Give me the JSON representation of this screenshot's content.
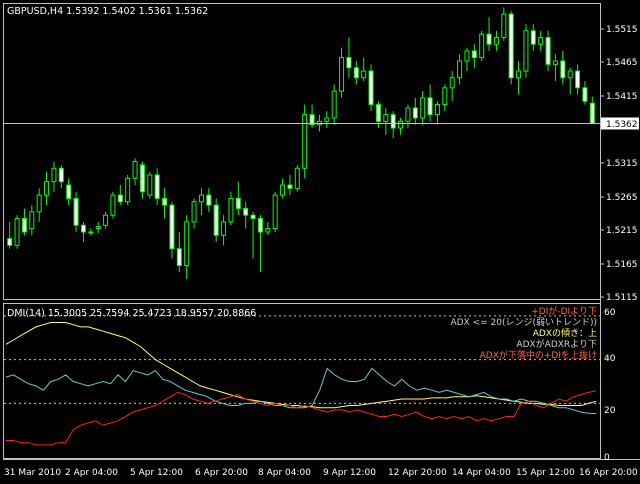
{
  "colors": {
    "background": "#000000",
    "frame": "#c0c0c0",
    "grid": "#c0c0c0",
    "candle_up_fill": "#000000",
    "candle_up_outline": "#00ff00",
    "candle_down_fill": "#ffffff",
    "candle_wick": "#00ff00",
    "price_line": "#c0c0c0",
    "adx_line": "#ffff66",
    "plus_di_line": "#66cccc",
    "minus_di_line": "#ff2020",
    "alert_plus": "#ff6644",
    "alert_adx_range": "#d0d0d0",
    "alert_adx_up": "#ffff66",
    "alert_adx_under": "#d0d0d0",
    "alert_cross": "#ff6644"
  },
  "main_chart": {
    "header": "GBPUSD,H4  1.5392 1.5402 1.5361 1.5362",
    "current_price_label": "1.5362",
    "current_price": 1.5362,
    "y_axis_labels": [
      "1.5515",
      "1.5465",
      "1.5415",
      "1.5315",
      "1.5265",
      "1.5215",
      "1.5165",
      "1.5115"
    ]
  },
  "indicator_panel": {
    "header": "DMI(14) 15.3005 25.7594 25.4723 18.9557 20.8866",
    "y_axis_labels": [
      "60",
      "40",
      "20",
      "0"
    ],
    "alerts": [
      "+DIが-DIより下",
      "ADX <= 20(レンジ(弱いトレンド))",
      "ADXの傾き：上",
      "ADXがADXRより下",
      "ADXが下落中の+DIを上抜け"
    ]
  },
  "x_axis_labels": [
    "31 Mar 2010",
    "2 Apr 04:00",
    "5 Apr 12:00",
    "6 Apr 20:00",
    "8 Apr 04:00",
    "9 Apr 12:00",
    "12 Apr 20:00",
    "14 Apr 04:00",
    "15 Apr 12:00",
    "16 Apr 20:00"
  ],
  "chart_data": [
    {
      "type": "candlestick",
      "title": "GBPUSD,H4",
      "ylim": [
        1.51,
        1.554
      ],
      "candles": [
        {
          "o": 1.519,
          "h": 1.5215,
          "l": 1.5175,
          "c": 1.518
        },
        {
          "o": 1.518,
          "h": 1.5225,
          "l": 1.5175,
          "c": 1.522
        },
        {
          "o": 1.522,
          "h": 1.5235,
          "l": 1.5195,
          "c": 1.52
        },
        {
          "o": 1.5205,
          "h": 1.524,
          "l": 1.5195,
          "c": 1.523
        },
        {
          "o": 1.523,
          "h": 1.5265,
          "l": 1.5215,
          "c": 1.5255
        },
        {
          "o": 1.5255,
          "h": 1.529,
          "l": 1.524,
          "c": 1.5275
        },
        {
          "o": 1.5275,
          "h": 1.5305,
          "l": 1.526,
          "c": 1.5295
        },
        {
          "o": 1.5295,
          "h": 1.53,
          "l": 1.5265,
          "c": 1.5275
        },
        {
          "o": 1.527,
          "h": 1.528,
          "l": 1.524,
          "c": 1.525
        },
        {
          "o": 1.525,
          "h": 1.526,
          "l": 1.52,
          "c": 1.521
        },
        {
          "o": 1.521,
          "h": 1.5215,
          "l": 1.5185,
          "c": 1.52
        },
        {
          "o": 1.52,
          "h": 1.5205,
          "l": 1.5195,
          "c": 1.52
        },
        {
          "o": 1.5205,
          "h": 1.5215,
          "l": 1.5198,
          "c": 1.5208
        },
        {
          "o": 1.521,
          "h": 1.523,
          "l": 1.5205,
          "c": 1.5225
        },
        {
          "o": 1.5225,
          "h": 1.526,
          "l": 1.522,
          "c": 1.5255
        },
        {
          "o": 1.5255,
          "h": 1.527,
          "l": 1.524,
          "c": 1.5245
        },
        {
          "o": 1.5245,
          "h": 1.5285,
          "l": 1.524,
          "c": 1.528
        },
        {
          "o": 1.528,
          "h": 1.531,
          "l": 1.527,
          "c": 1.5305
        },
        {
          "o": 1.53,
          "h": 1.5305,
          "l": 1.525,
          "c": 1.526
        },
        {
          "o": 1.5255,
          "h": 1.529,
          "l": 1.525,
          "c": 1.5285
        },
        {
          "o": 1.5285,
          "h": 1.5295,
          "l": 1.524,
          "c": 1.525
        },
        {
          "o": 1.525,
          "h": 1.5265,
          "l": 1.522,
          "c": 1.524
        },
        {
          "o": 1.524,
          "h": 1.5245,
          "l": 1.516,
          "c": 1.5175
        },
        {
          "o": 1.5175,
          "h": 1.52,
          "l": 1.514,
          "c": 1.515
        },
        {
          "o": 1.515,
          "h": 1.5225,
          "l": 1.513,
          "c": 1.5215
        },
        {
          "o": 1.5215,
          "h": 1.525,
          "l": 1.5205,
          "c": 1.5245
        },
        {
          "o": 1.5245,
          "h": 1.5265,
          "l": 1.5225,
          "c": 1.5255
        },
        {
          "o": 1.5255,
          "h": 1.5265,
          "l": 1.523,
          "c": 1.524
        },
        {
          "o": 1.524,
          "h": 1.525,
          "l": 1.5185,
          "c": 1.5195
        },
        {
          "o": 1.5195,
          "h": 1.5225,
          "l": 1.518,
          "c": 1.5215
        },
        {
          "o": 1.5215,
          "h": 1.526,
          "l": 1.521,
          "c": 1.525
        },
        {
          "o": 1.525,
          "h": 1.5275,
          "l": 1.5225,
          "c": 1.5235
        },
        {
          "o": 1.5235,
          "h": 1.5245,
          "l": 1.5205,
          "c": 1.5225
        },
        {
          "o": 1.5225,
          "h": 1.523,
          "l": 1.516,
          "c": 1.522
        },
        {
          "o": 1.522,
          "h": 1.5225,
          "l": 1.514,
          "c": 1.52
        },
        {
          "o": 1.52,
          "h": 1.5215,
          "l": 1.5195,
          "c": 1.5205
        },
        {
          "o": 1.5205,
          "h": 1.526,
          "l": 1.52,
          "c": 1.5255
        },
        {
          "o": 1.5255,
          "h": 1.528,
          "l": 1.525,
          "c": 1.527
        },
        {
          "o": 1.527,
          "h": 1.5285,
          "l": 1.5255,
          "c": 1.5265
        },
        {
          "o": 1.5265,
          "h": 1.53,
          "l": 1.526,
          "c": 1.5295
        },
        {
          "o": 1.5295,
          "h": 1.539,
          "l": 1.528,
          "c": 1.5375
        },
        {
          "o": 1.5375,
          "h": 1.539,
          "l": 1.5355,
          "c": 1.536
        },
        {
          "o": 1.536,
          "h": 1.5375,
          "l": 1.535,
          "c": 1.5365
        },
        {
          "o": 1.5365,
          "h": 1.538,
          "l": 1.5355,
          "c": 1.537
        },
        {
          "o": 1.537,
          "h": 1.542,
          "l": 1.536,
          "c": 1.541
        },
        {
          "o": 1.541,
          "h": 1.5475,
          "l": 1.54,
          "c": 1.546
        },
        {
          "o": 1.546,
          "h": 1.549,
          "l": 1.543,
          "c": 1.5445
        },
        {
          "o": 1.5445,
          "h": 1.5455,
          "l": 1.542,
          "c": 1.543
        },
        {
          "o": 1.543,
          "h": 1.546,
          "l": 1.5425,
          "c": 1.544
        },
        {
          "o": 1.544,
          "h": 1.545,
          "l": 1.538,
          "c": 1.539
        },
        {
          "o": 1.539,
          "h": 1.5395,
          "l": 1.5355,
          "c": 1.5365
        },
        {
          "o": 1.5365,
          "h": 1.5385,
          "l": 1.5345,
          "c": 1.5375
        },
        {
          "o": 1.5375,
          "h": 1.538,
          "l": 1.534,
          "c": 1.5355
        },
        {
          "o": 1.5355,
          "h": 1.537,
          "l": 1.5345,
          "c": 1.5365
        },
        {
          "o": 1.5365,
          "h": 1.539,
          "l": 1.5355,
          "c": 1.5385
        },
        {
          "o": 1.5385,
          "h": 1.54,
          "l": 1.536,
          "c": 1.537
        },
        {
          "o": 1.537,
          "h": 1.541,
          "l": 1.536,
          "c": 1.54
        },
        {
          "o": 1.54,
          "h": 1.542,
          "l": 1.5365,
          "c": 1.5375
        },
        {
          "o": 1.5375,
          "h": 1.5395,
          "l": 1.536,
          "c": 1.539
        },
        {
          "o": 1.539,
          "h": 1.542,
          "l": 1.538,
          "c": 1.5415
        },
        {
          "o": 1.5415,
          "h": 1.544,
          "l": 1.5395,
          "c": 1.543
        },
        {
          "o": 1.543,
          "h": 1.5465,
          "l": 1.542,
          "c": 1.5455
        },
        {
          "o": 1.5455,
          "h": 1.5475,
          "l": 1.544,
          "c": 1.547
        },
        {
          "o": 1.547,
          "h": 1.548,
          "l": 1.5445,
          "c": 1.546
        },
        {
          "o": 1.546,
          "h": 1.55,
          "l": 1.5455,
          "c": 1.5495
        },
        {
          "o": 1.5495,
          "h": 1.552,
          "l": 1.547,
          "c": 1.548
        },
        {
          "o": 1.548,
          "h": 1.55,
          "l": 1.547,
          "c": 1.549
        },
        {
          "o": 1.549,
          "h": 1.5535,
          "l": 1.5485,
          "c": 1.5525
        },
        {
          "o": 1.5525,
          "h": 1.553,
          "l": 1.542,
          "c": 1.543
        },
        {
          "o": 1.543,
          "h": 1.5455,
          "l": 1.5405,
          "c": 1.544
        },
        {
          "o": 1.544,
          "h": 1.551,
          "l": 1.543,
          "c": 1.55
        },
        {
          "o": 1.55,
          "h": 1.551,
          "l": 1.547,
          "c": 1.548
        },
        {
          "o": 1.548,
          "h": 1.55,
          "l": 1.547,
          "c": 1.549
        },
        {
          "o": 1.549,
          "h": 1.55,
          "l": 1.544,
          "c": 1.545
        },
        {
          "o": 1.545,
          "h": 1.5465,
          "l": 1.5425,
          "c": 1.5455
        },
        {
          "o": 1.5455,
          "h": 1.547,
          "l": 1.542,
          "c": 1.543
        },
        {
          "o": 1.543,
          "h": 1.5445,
          "l": 1.5405,
          "c": 1.544
        },
        {
          "o": 1.544,
          "h": 1.545,
          "l": 1.5405,
          "c": 1.5415
        },
        {
          "o": 1.5415,
          "h": 1.5425,
          "l": 1.539,
          "c": 1.5395
        },
        {
          "o": 1.5392,
          "h": 1.5402,
          "l": 1.5361,
          "c": 1.5362
        }
      ]
    },
    {
      "type": "line",
      "title": "DMI(14)",
      "ylim": [
        -5,
        65
      ],
      "series": [
        {
          "name": "ADX",
          "values": [
            47,
            49,
            51,
            53,
            55,
            56,
            57,
            57,
            57,
            56,
            55,
            55,
            54,
            53,
            52,
            51,
            50,
            48,
            46,
            43,
            40,
            38,
            36,
            34,
            32,
            30,
            28,
            27,
            26,
            25,
            24,
            23,
            22,
            21.5,
            21,
            20.5,
            20,
            19.5,
            19,
            19,
            18.5,
            18.5,
            18,
            18,
            18,
            18.5,
            19,
            19,
            19.5,
            20,
            20.5,
            21,
            21.5,
            22,
            22,
            22,
            22,
            22.5,
            22.5,
            22.5,
            23,
            23,
            23,
            23.5,
            23,
            22.5,
            22,
            21.5,
            21,
            20.5,
            20,
            20,
            19.5,
            19.5,
            19,
            19,
            19,
            19,
            20,
            20.9
          ]
        },
        {
          "name": "+DI",
          "values": [
            32,
            33,
            31,
            29,
            28,
            26,
            30,
            31,
            33,
            30,
            29,
            28,
            29,
            30,
            29,
            33,
            30,
            35,
            34,
            33,
            35,
            31,
            30,
            28,
            26,
            25,
            24,
            23,
            21,
            20,
            19,
            19,
            20,
            20,
            21,
            20,
            19,
            19,
            18,
            18,
            18,
            19,
            26,
            36,
            33,
            31,
            30,
            30,
            31,
            36,
            33,
            30,
            28,
            31,
            28,
            26,
            27,
            26,
            25,
            26,
            25,
            24,
            23,
            24,
            25,
            23,
            22,
            22,
            21,
            22,
            21,
            21,
            20,
            19,
            18,
            18,
            17,
            16,
            15.5,
            15.3
          ]
        },
        {
          "name": "-DI",
          "values": [
            3,
            3,
            2,
            2,
            1,
            1,
            1,
            2,
            2,
            8,
            10,
            11,
            12,
            10,
            11,
            12,
            14,
            16,
            17,
            18,
            19,
            21,
            23,
            25,
            24,
            22,
            21,
            20,
            21,
            22,
            23,
            24,
            22,
            21,
            20,
            19,
            20,
            19,
            19,
            18,
            19,
            18,
            17,
            16,
            17,
            17,
            16,
            17,
            16,
            15,
            14,
            14,
            15,
            14,
            15,
            16,
            14,
            13,
            14,
            13,
            14,
            13,
            14,
            12,
            13,
            12,
            13,
            14,
            14,
            20,
            21,
            19,
            18,
            20,
            22,
            21,
            23,
            24,
            25,
            25.8
          ]
        }
      ]
    }
  ]
}
